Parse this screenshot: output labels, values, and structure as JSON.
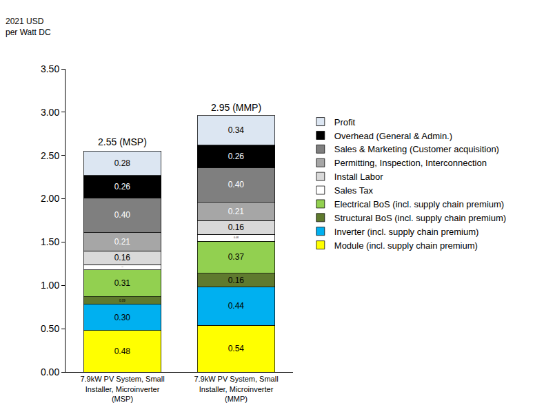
{
  "chart_data": {
    "type": "bar",
    "stacked": true,
    "data_labels": true,
    "grid": false,
    "legend": "right",
    "y_label": "2021 USD per Watt DC",
    "categories": [
      "7.9kW PV System, Small Installer, Microinverter (MSP)",
      "7.9kW PV System, Small Installer, Microinverter (MMP)"
    ],
    "ylim": [
      0,
      3.5
    ],
    "yticks": [
      {
        "value": 0,
        "label": "0.00"
      },
      {
        "value": 0.5,
        "label": "0.50"
      },
      {
        "value": 1,
        "label": "1.00"
      },
      {
        "value": 1.5,
        "label": "1.50"
      },
      {
        "value": 2,
        "label": "2.00"
      },
      {
        "value": 2.5,
        "label": "2.50"
      },
      {
        "value": 3,
        "label": "3.00"
      },
      {
        "value": 3.5,
        "label": "3.50"
      }
    ],
    "totals": [
      {
        "value": 2.55,
        "label": "2.55 (MSP)"
      },
      {
        "value": 2.95,
        "label": "2.95 (MMP)"
      }
    ],
    "series": [
      {
        "name": "Module (incl. supply chain premium)",
        "color": "#ffff00",
        "values": [
          0.48,
          0.54
        ],
        "value_labels": [
          "0.48",
          "0.54"
        ]
      },
      {
        "name": "Inverter (incl. supply chain premium)",
        "color": "#00b0f0",
        "values": [
          0.3,
          0.44
        ],
        "value_labels": [
          "0.30",
          "0.44"
        ]
      },
      {
        "name": "Structural BoS (incl. supply chain premium)",
        "color": "#5f7a2e",
        "values": [
          0.09,
          0.16
        ],
        "value_labels": [
          "0.09",
          "0.16"
        ]
      },
      {
        "name": "Electrical BoS (incl. supply chain premium)",
        "color": "#92d050",
        "values": [
          0.31,
          0.37
        ],
        "value_labels": [
          "0.31",
          "0.37"
        ]
      },
      {
        "name": "Sales Tax",
        "color": "#ffffff",
        "values": [
          0.06,
          0.08
        ],
        "value_labels": [
          "0.06",
          "0.08"
        ]
      },
      {
        "name": "Install Labor",
        "color": "#d9d9d9",
        "values": [
          0.16,
          0.16
        ],
        "value_labels": [
          "0.16",
          "0.16"
        ]
      },
      {
        "name": "Permitting, Inspection, Interconnection",
        "color": "#a6a6a6",
        "values": [
          0.21,
          0.21
        ],
        "value_labels": [
          "0.21",
          "0.21"
        ]
      },
      {
        "name": "Sales & Marketing (Customer acquisition)",
        "color": "#7f7f7f",
        "values": [
          0.4,
          0.4
        ],
        "value_labels": [
          "0.40",
          "0.40"
        ]
      },
      {
        "name": "Overhead (General & Admin.)",
        "color": "#000000",
        "values": [
          0.26,
          0.26
        ],
        "value_labels": [
          "0.26",
          "0.26"
        ]
      },
      {
        "name": "Profit",
        "color": "#dce6f2",
        "values": [
          0.28,
          0.34
        ],
        "value_labels": [
          "0.28",
          "0.34"
        ]
      }
    ]
  }
}
